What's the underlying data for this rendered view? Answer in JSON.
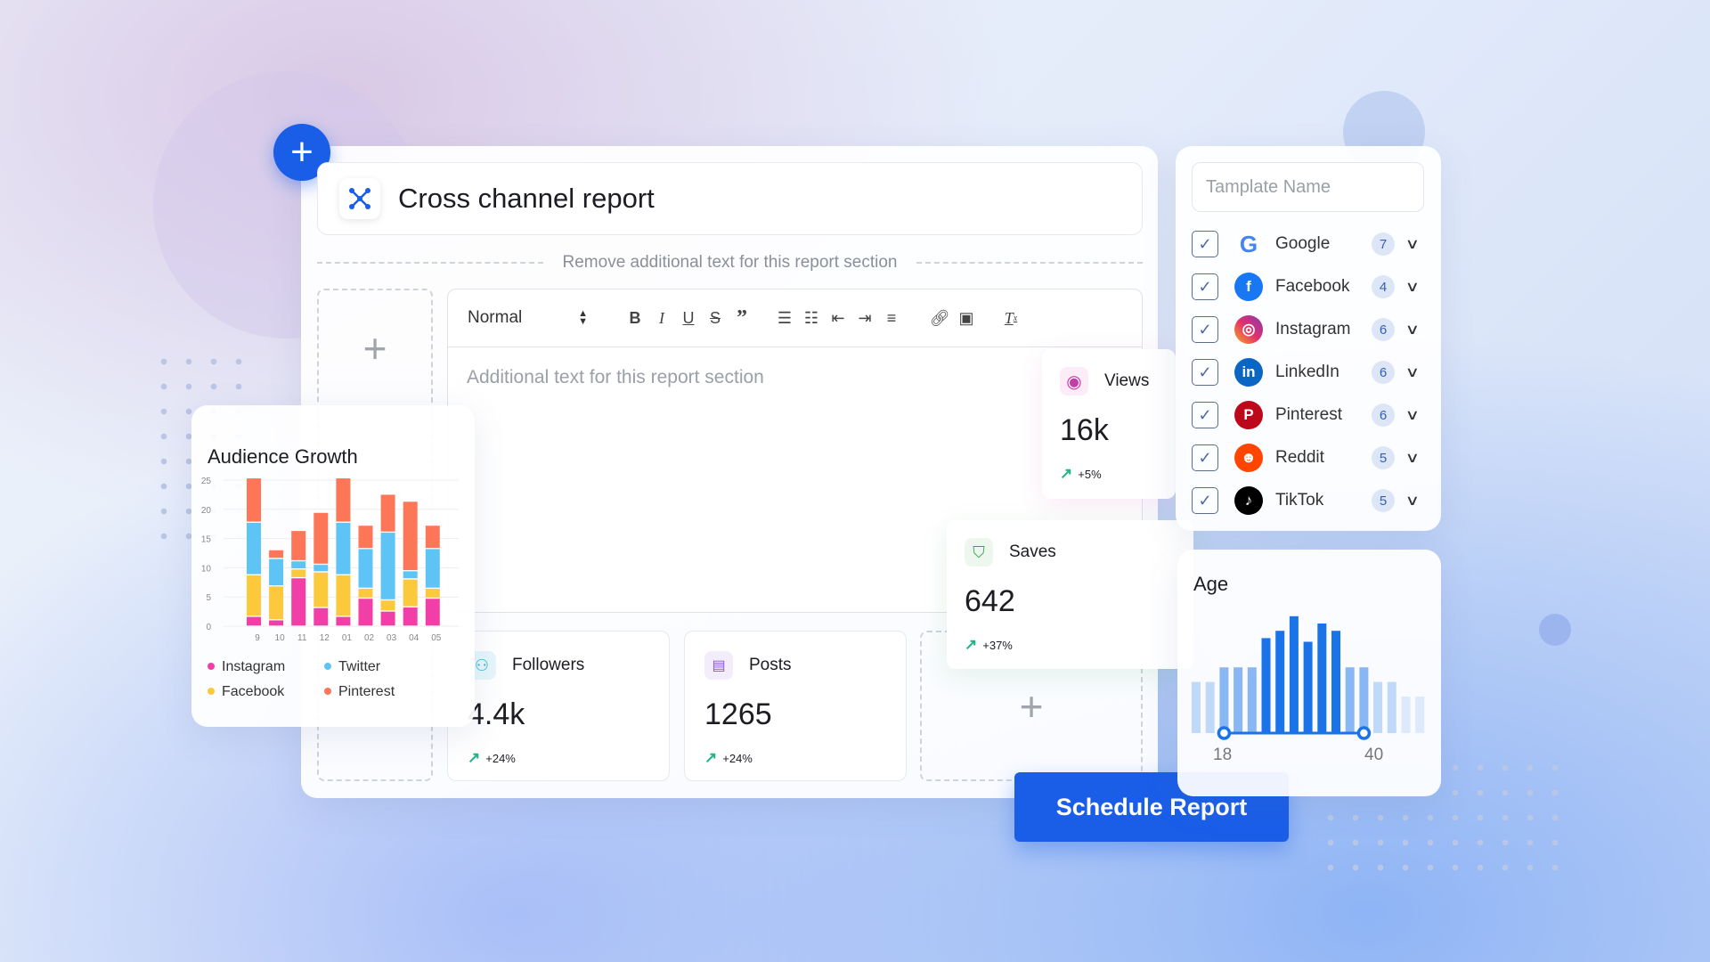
{
  "report": {
    "title": "Cross channel report",
    "divider_text": "Remove additional text for this report section",
    "editor_placeholder": "Additional text for this report section",
    "add_icon": "plus-icon"
  },
  "toolbar": {
    "format": "Normal",
    "buttons": [
      "bold",
      "italic",
      "underline",
      "strikethrough",
      "blockquote",
      "ordered-list",
      "bullet-list",
      "outdent",
      "indent",
      "align",
      "link",
      "image",
      "clear-format"
    ]
  },
  "stats": {
    "followers": {
      "label": "Followers",
      "value": "4.4k",
      "change": "+24%",
      "icon": "users-icon",
      "color": "#27b6d6"
    },
    "posts": {
      "label": "Posts",
      "value": "1265",
      "change": "+24%",
      "icon": "document-icon",
      "color": "#8a55d6"
    },
    "views": {
      "label": "Views",
      "value": "16k",
      "change": "+5%",
      "icon": "eye-icon",
      "color": "#c23fa8"
    },
    "saves": {
      "label": "Saves",
      "value": "642",
      "change": "+37%",
      "icon": "bookmark-icon",
      "color": "#3aa64a"
    }
  },
  "schedule_label": "Schedule Report",
  "template": {
    "placeholder": "Tamplate Name"
  },
  "channels": [
    {
      "name": "Google",
      "count": "7",
      "checked": true,
      "color": "#4285f4"
    },
    {
      "name": "Facebook",
      "count": "4",
      "checked": true,
      "color": "#1877f2"
    },
    {
      "name": "Instagram",
      "count": "6",
      "checked": true,
      "color": "#d6336c"
    },
    {
      "name": "LinkedIn",
      "count": "6",
      "checked": true,
      "color": "#0a66c2"
    },
    {
      "name": "Pinterest",
      "count": "6",
      "checked": true,
      "color": "#bd081c"
    },
    {
      "name": "Reddit",
      "count": "5",
      "checked": true,
      "color": "#ff4500"
    },
    {
      "name": "TikTok",
      "count": "5",
      "checked": true,
      "color": "#000000"
    }
  ],
  "age": {
    "title": "Age",
    "min_label": "18",
    "max_label": "40",
    "range": [
      18,
      40
    ],
    "bars": [
      7,
      7,
      9,
      9,
      9,
      13,
      14,
      16,
      12.5,
      15,
      14,
      9,
      9,
      7,
      7,
      5,
      5
    ],
    "selected_from": 2,
    "selected_to": 12,
    "accent": "#1a73e8"
  },
  "chart_data": {
    "type": "bar",
    "stacked": true,
    "title": "Audience Growth",
    "categories": [
      "9",
      "10",
      "11",
      "12",
      "01",
      "02",
      "03",
      "04",
      "05"
    ],
    "yticks": [
      "0",
      "5",
      "10",
      "15",
      "20",
      "25"
    ],
    "ylim": [
      0,
      25
    ],
    "grid": true,
    "legend": "bottom",
    "series": [
      {
        "name": "Instagram",
        "color": "#f23fa8",
        "values": [
          1.7,
          1.1,
          8.3,
          3.2,
          1.7,
          4.8,
          2.6,
          3.3,
          4.8
        ]
      },
      {
        "name": "Facebook",
        "color": "#fcc83c",
        "values": [
          7.1,
          5.8,
          1.5,
          6.1,
          7.1,
          1.7,
          1.9,
          4.8,
          1.7
        ]
      },
      {
        "name": "Twitter",
        "color": "#5ec3f5",
        "values": [
          9,
          4.7,
          1.4,
          1.3,
          9,
          6.8,
          11.6,
          1.4,
          6.8
        ]
      },
      {
        "name": "Pinterest",
        "color": "#fd7658",
        "values": [
          7.6,
          1.5,
          5.2,
          8.9,
          7.6,
          4,
          6.5,
          11.9,
          4
        ]
      }
    ]
  }
}
